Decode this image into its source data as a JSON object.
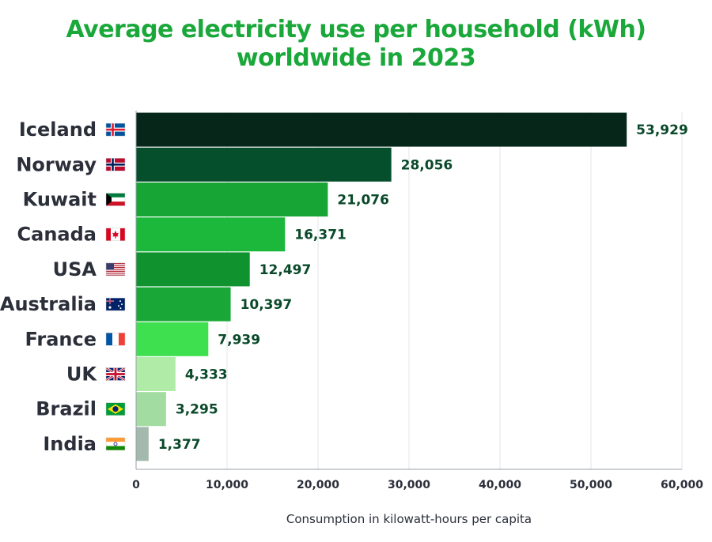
{
  "chart_data": {
    "type": "bar",
    "orientation": "horizontal",
    "title_lines": [
      "Average electricity use per household (kWh)",
      "worldwide in 2023"
    ],
    "xlabel": "Consumption in kilowatt-hours per capita",
    "ylabel": "",
    "xlim": [
      0,
      60000
    ],
    "xticks": [
      0,
      10000,
      20000,
      30000,
      40000,
      50000,
      60000
    ],
    "xtick_labels": [
      "0",
      "10,000",
      "20,000",
      "30,000",
      "40,000",
      "50,000",
      "60,000"
    ],
    "grid": "vertical",
    "categories": [
      "Iceland",
      "Norway",
      "Kuwait",
      "Canada",
      "USA",
      "Australia",
      "France",
      "UK",
      "Brazil",
      "India"
    ],
    "flags": [
      "flag-iceland-icon",
      "flag-norway-icon",
      "flag-kuwait-icon",
      "flag-canada-icon",
      "flag-usa-icon",
      "flag-australia-icon",
      "flag-france-icon",
      "flag-uk-icon",
      "flag-brazil-icon",
      "flag-india-icon"
    ],
    "values": [
      53929,
      28056,
      21076,
      16371,
      12497,
      10397,
      7939,
      4333,
      3295,
      1377
    ],
    "value_labels": [
      "53,929",
      "28,056",
      "21,076",
      "16,371",
      "12,497",
      "10,397",
      "7,939",
      "4,333",
      "3,295",
      "1,377"
    ],
    "bar_colors": [
      "#06261a",
      "#054f2c",
      "#17a535",
      "#1cb83b",
      "#10922f",
      "#19a837",
      "#3fe04f",
      "#b0eba8",
      "#a2dca0",
      "#a3b9ad"
    ]
  }
}
